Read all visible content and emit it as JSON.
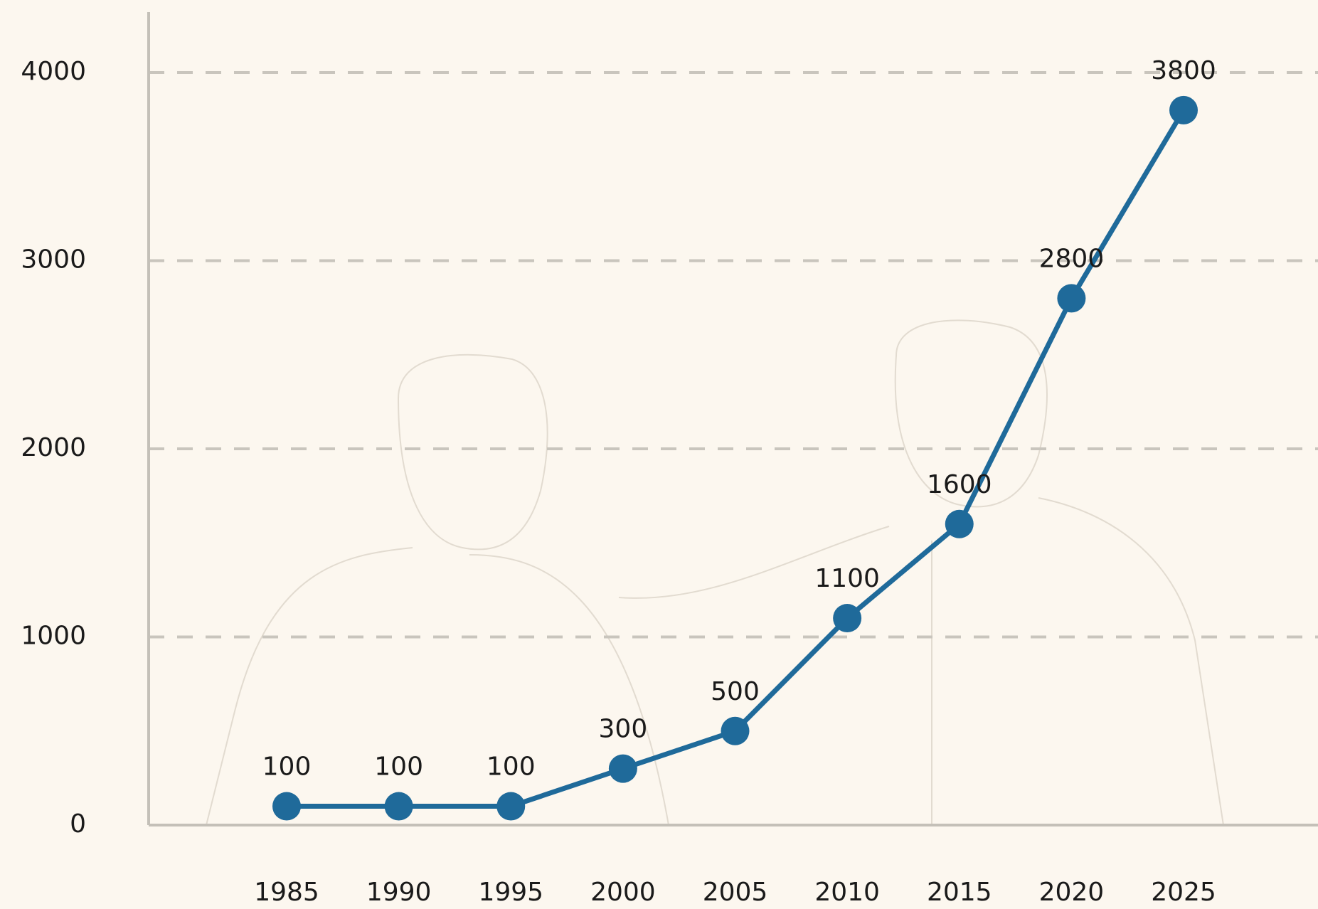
{
  "chart_data": {
    "type": "line",
    "categories": [
      "1985",
      "1990",
      "1995",
      "2000",
      "2005",
      "2010",
      "2015",
      "2020",
      "2025"
    ],
    "series": [
      {
        "color": "#1f6a9a",
        "values": [
          100,
          100,
          100,
          300,
          500,
          1100,
          1600,
          2800,
          3800
        ]
      }
    ],
    "ylim": [
      0,
      4000
    ],
    "yticks": [
      0,
      1000,
      2000,
      3000,
      4000
    ],
    "grid": true,
    "grid_style": "dashed"
  }
}
